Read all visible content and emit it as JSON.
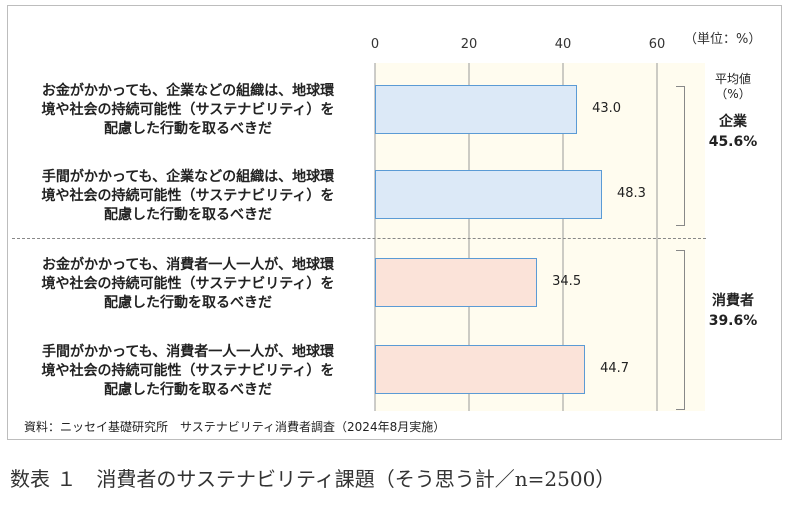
{
  "unit_label": "（単位：%）",
  "chart_data": {
    "type": "bar",
    "orientation": "horizontal",
    "categories": [
      "お金がかかっても、企業などの組織は、地球環境や社会の持続可能性（サステナビリティ）を配慮した行動を取るべきだ",
      "手間がかかっても、企業などの組織は、地球環境や社会の持続可能性（サステナビリティ）を配慮した行動を取るべきだ",
      "お金がかかっても、消費者一人一人が、地球環境や社会の持続可能性（サステナビリティ）を配慮した行動を取るべきだ",
      "手間がかかっても、消費者一人一人が、地球環境や社会の持続可能性（サステナビリティ）を配慮した行動を取るべきだ"
    ],
    "label_lines": [
      [
        "お金がかかっても、企業などの組織は、地球環",
        "境や社会の持続可能性（サステナビリティ）を",
        "配慮した行動を取るべきだ"
      ],
      [
        "手間がかかっても、企業などの組織は、地球環",
        "境や社会の持続可能性（サステナビリティ）を",
        "配慮した行動を取るべきだ"
      ],
      [
        "お金がかかっても、消費者一人一人が、地球環",
        "境や社会の持続可能性（サステナビリティ）を",
        "配慮した行動を取るべきだ"
      ],
      [
        "手間がかかっても、消費者一人一人が、地球環",
        "境や社会の持続可能性（サステナビリティ）を",
        "配慮した行動を取るべきだ"
      ]
    ],
    "values": [
      43.0,
      48.3,
      34.5,
      44.7
    ],
    "value_labels": [
      "43.0",
      "48.3",
      "34.5",
      "44.7"
    ],
    "bar_colors": [
      "#dce9f7",
      "#dce9f7",
      "#fbe3d9",
      "#fbe3d9"
    ],
    "bar_borders": [
      "#5b9bd5",
      "#5b9bd5",
      "#5b9bd5",
      "#5b9bd5"
    ],
    "xlim": [
      0,
      60
    ],
    "xticks": [
      0,
      20,
      40,
      60
    ],
    "grid": true
  },
  "averages": {
    "header": [
      "平均値",
      "（%）"
    ],
    "groups": [
      {
        "name": "企業",
        "value": "45.6%"
      },
      {
        "name": "消費者",
        "value": "39.6%"
      }
    ]
  },
  "source": "資料：ニッセイ基礎研究所　サステナビリティ消費者調査（2024年8月実施）",
  "caption": "数表 １　消費者のサステナビリティ課題（そう思う計／n=2500）"
}
